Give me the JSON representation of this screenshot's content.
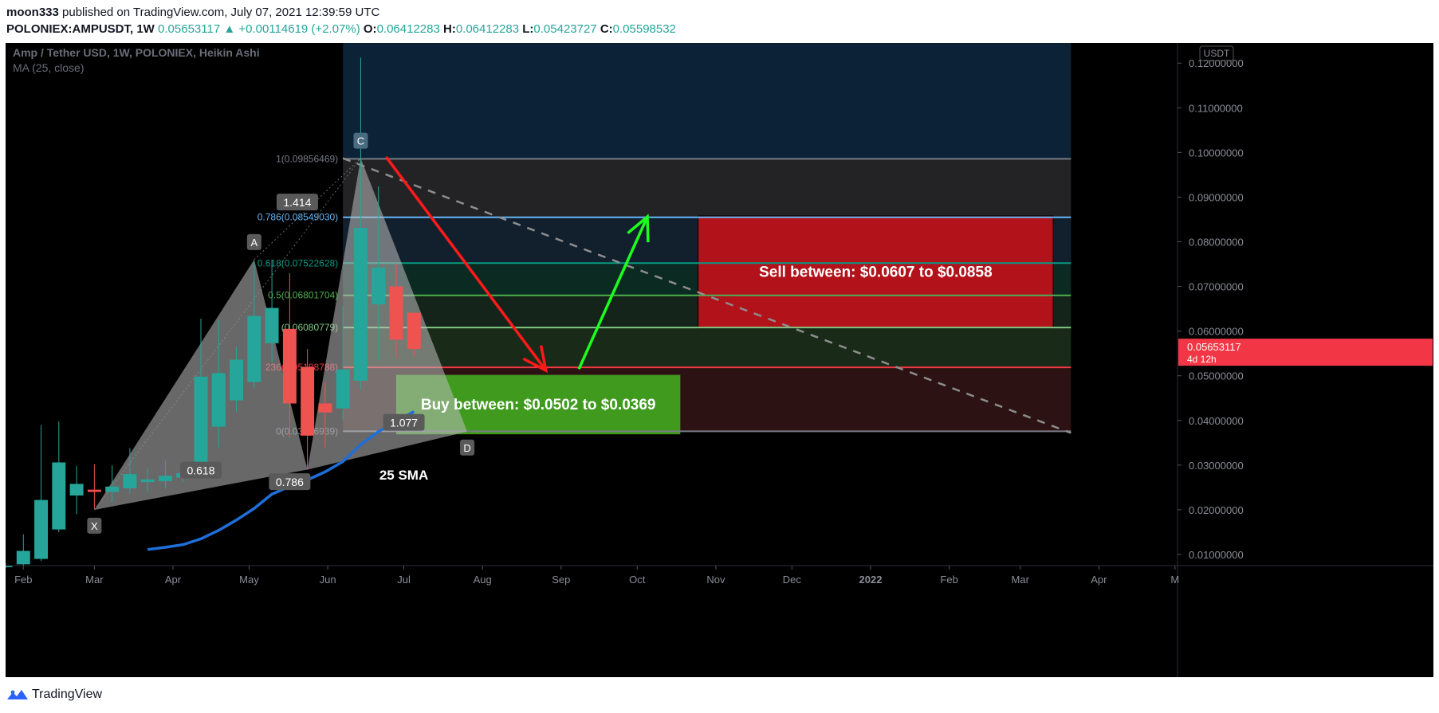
{
  "header": {
    "author": "moon333",
    "published_text": "published on TradingView.com, July 07, 2021 12:39:59 UTC",
    "symbol": "POLONIEX:AMPUSDT, 1W",
    "price": "0.05653117",
    "change_arrow": "▲",
    "change": "+0.00114619 (+2.07%)",
    "o_label": "O:",
    "o_value": "0.06412283",
    "h_label": "H:",
    "h_value": "0.06412283",
    "l_label": "L:",
    "l_value": "0.05423727",
    "c_label": "C:",
    "c_value": "0.05598532"
  },
  "legend": {
    "title": "Amp / Tether USD, 1W, POLONIEX, Heikin Ashi",
    "indicator": "MA (25, close)"
  },
  "footer": {
    "brand": "TradingView",
    "logo_icon": "tradingview-logo-icon"
  },
  "colors": {
    "up": "#26a69a",
    "down": "#ef5350",
    "ma": "#1e6fd9",
    "price_tag": "#f23645",
    "sell_box": "#b2121a",
    "buy_box": "#3f9a1d",
    "arrow_down": "#ff1a1a",
    "arrow_up": "#1dff1d"
  },
  "chart_data": {
    "type": "candlestick",
    "title": "Amp / Tether USD, 1W, POLONIEX, Heikin Ashi",
    "currency": "USDT",
    "y_scale": "linear",
    "ylim": [
      0.0075,
      0.1245
    ],
    "x_range": [
      "2021-01-25",
      "2022-05-02"
    ],
    "x_tick_labels": [
      {
        "label": "Feb",
        "date": "2021-02-01"
      },
      {
        "label": "Mar",
        "date": "2021-03-01"
      },
      {
        "label": "Apr",
        "date": "2021-04-01"
      },
      {
        "label": "May",
        "date": "2021-05-01"
      },
      {
        "label": "Jun",
        "date": "2021-06-01"
      },
      {
        "label": "Jul",
        "date": "2021-07-01"
      },
      {
        "label": "Aug",
        "date": "2021-08-01"
      },
      {
        "label": "Sep",
        "date": "2021-09-01"
      },
      {
        "label": "Oct",
        "date": "2021-10-01"
      },
      {
        "label": "Nov",
        "date": "2021-11-01"
      },
      {
        "label": "Dec",
        "date": "2021-12-01"
      },
      {
        "label": "2022",
        "date": "2022-01-01"
      },
      {
        "label": "Feb",
        "date": "2022-02-01"
      },
      {
        "label": "Mar",
        "date": "2022-03-01"
      },
      {
        "label": "Apr",
        "date": "2022-04-01"
      },
      {
        "label": "M",
        "date": "2022-05-01"
      }
    ],
    "y_tick_labels": [
      "0.12000000",
      "0.11000000",
      "0.10000000",
      "0.09000000",
      "0.08000000",
      "0.07000000",
      "0.06000000",
      "0.05000000",
      "0.04000000",
      "0.03000000",
      "0.02000000",
      "0.01000000"
    ],
    "y_tick_values": [
      0.12,
      0.11,
      0.1,
      0.09,
      0.08,
      0.07,
      0.06,
      0.05,
      0.04,
      0.03,
      0.02,
      0.01
    ],
    "candles": [
      {
        "date": "2021-01-25",
        "o": 0.0072,
        "h": 0.008,
        "l": 0.007,
        "c": 0.0075
      },
      {
        "date": "2021-02-01",
        "o": 0.0078,
        "h": 0.0145,
        "l": 0.0075,
        "c": 0.0108
      },
      {
        "date": "2021-02-08",
        "o": 0.009,
        "h": 0.039,
        "l": 0.0085,
        "c": 0.0222
      },
      {
        "date": "2021-02-15",
        "o": 0.0156,
        "h": 0.0398,
        "l": 0.015,
        "c": 0.0306
      },
      {
        "date": "2021-02-22",
        "o": 0.0232,
        "h": 0.0298,
        "l": 0.019,
        "c": 0.0258
      },
      {
        "date": "2021-03-01",
        "o": 0.0245,
        "h": 0.0302,
        "l": 0.0202,
        "c": 0.024
      },
      {
        "date": "2021-03-08",
        "o": 0.024,
        "h": 0.03,
        "l": 0.0218,
        "c": 0.0252
      },
      {
        "date": "2021-03-15",
        "o": 0.0248,
        "h": 0.0338,
        "l": 0.0236,
        "c": 0.028
      },
      {
        "date": "2021-03-22",
        "o": 0.0262,
        "h": 0.0292,
        "l": 0.024,
        "c": 0.0268
      },
      {
        "date": "2021-03-29",
        "o": 0.0264,
        "h": 0.031,
        "l": 0.0248,
        "c": 0.0276
      },
      {
        "date": "2021-04-05",
        "o": 0.0272,
        "h": 0.03,
        "l": 0.0262,
        "c": 0.0282
      },
      {
        "date": "2021-04-12",
        "o": 0.0278,
        "h": 0.0628,
        "l": 0.0274,
        "c": 0.0498
      },
      {
        "date": "2021-04-19",
        "o": 0.0386,
        "h": 0.0625,
        "l": 0.034,
        "c": 0.0506
      },
      {
        "date": "2021-04-26",
        "o": 0.0445,
        "h": 0.0566,
        "l": 0.042,
        "c": 0.0536
      },
      {
        "date": "2021-05-03",
        "o": 0.0486,
        "h": 0.0756,
        "l": 0.0473,
        "c": 0.0634
      },
      {
        "date": "2021-05-10",
        "o": 0.0573,
        "h": 0.076,
        "l": 0.053,
        "c": 0.0652
      },
      {
        "date": "2021-05-17",
        "o": 0.0605,
        "h": 0.073,
        "l": 0.036,
        "c": 0.0438
      },
      {
        "date": "2021-05-24",
        "o": 0.052,
        "h": 0.056,
        "l": 0.029,
        "c": 0.0366
      },
      {
        "date": "2021-05-31",
        "o": 0.0438,
        "h": 0.0487,
        "l": 0.034,
        "c": 0.0418
      },
      {
        "date": "2021-06-07",
        "o": 0.0427,
        "h": 0.0658,
        "l": 0.04,
        "c": 0.0514
      },
      {
        "date": "2021-06-14",
        "o": 0.0489,
        "h": 0.1212,
        "l": 0.047,
        "c": 0.0831
      },
      {
        "date": "2021-06-21",
        "o": 0.066,
        "h": 0.0924,
        "l": 0.0532,
        "c": 0.0742
      },
      {
        "date": "2021-06-28",
        "o": 0.07,
        "h": 0.0752,
        "l": 0.054,
        "c": 0.0581
      },
      {
        "date": "2021-07-05",
        "o": 0.0641,
        "h": 0.0641,
        "l": 0.0542,
        "c": 0.056
      }
    ],
    "ma": {
      "name": "MA (25, close)",
      "points": [
        {
          "date": "2021-03-22",
          "v": 0.0111
        },
        {
          "date": "2021-03-29",
          "v": 0.0116
        },
        {
          "date": "2021-04-05",
          "v": 0.0122
        },
        {
          "date": "2021-04-12",
          "v": 0.0135
        },
        {
          "date": "2021-04-19",
          "v": 0.0154
        },
        {
          "date": "2021-04-26",
          "v": 0.0177
        },
        {
          "date": "2021-05-03",
          "v": 0.0203
        },
        {
          "date": "2021-05-10",
          "v": 0.0235
        },
        {
          "date": "2021-05-17",
          "v": 0.0252
        },
        {
          "date": "2021-05-24",
          "v": 0.0267
        },
        {
          "date": "2021-05-31",
          "v": 0.0285
        },
        {
          "date": "2021-06-07",
          "v": 0.0308
        },
        {
          "date": "2021-06-14",
          "v": 0.0346
        },
        {
          "date": "2021-06-21",
          "v": 0.0375
        },
        {
          "date": "2021-06-28",
          "v": 0.0398
        },
        {
          "date": "2021-07-05",
          "v": 0.042
        }
      ]
    },
    "fib_box": {
      "start": "2021-06-07",
      "end": "2022-03-21",
      "top": 0.1245
    },
    "fib_levels": [
      {
        "ratio": "1",
        "value": 0.09856469,
        "label": "1(0.09856469)",
        "color": "#787b86",
        "fill": "#232326"
      },
      {
        "ratio": "0.786",
        "value": 0.0854903,
        "label": "0.786(0.08549030)",
        "color": "#64b5f6",
        "fill": "#12202e"
      },
      {
        "ratio": "0.618",
        "value": 0.07522628,
        "label": "0.618(0.07522628)",
        "color": "#089981",
        "fill": "#0b2a22"
      },
      {
        "ratio": "0.5",
        "value": 0.06801704,
        "label": "0.5(0.06801704)",
        "color": "#4caf50",
        "fill": "#15241a"
      },
      {
        "ratio": "0.382",
        "value": 0.06080779,
        "label": "(0.06080779)",
        "color": "#81c784",
        "fill": "#1a2a18"
      },
      {
        "ratio": "0.236",
        "value": 0.05188788,
        "label": "236(0.05188788)",
        "color": "#f23645",
        "fill": "#2c1212"
      },
      {
        "ratio": "0",
        "value": 0.03756939,
        "label": "0(0.03756939)",
        "color": "#787b86",
        "fill": null
      }
    ],
    "harmonic": {
      "points": {
        "X": {
          "date": "2021-03-01",
          "v": 0.02
        },
        "A": {
          "date": "2021-05-03",
          "v": 0.076
        },
        "B": {
          "date": "2021-05-24",
          "v": 0.029
        },
        "C": {
          "date": "2021-06-14",
          "v": 0.0987
        },
        "D": {
          "date": "2021-07-26",
          "v": 0.0375
        }
      },
      "ratios": [
        {
          "text": "1.414",
          "date": "2021-05-20",
          "v": 0.0888
        },
        {
          "text": "0.618",
          "date": "2021-04-12",
          "v": 0.0288
        },
        {
          "text": "0.786",
          "date": "2021-05-17",
          "v": 0.0262
        },
        {
          "text": "1.077",
          "date": "2021-07-01",
          "v": 0.0395
        }
      ]
    },
    "trendlines": [
      {
        "name": "dotted-support-line",
        "from": {
          "date": "2021-03-01",
          "v": 0.02
        },
        "to": {
          "date": "2021-07-26",
          "v": 0.0375
        }
      },
      {
        "name": "dashed-downtrend-line",
        "from": {
          "date": "2021-06-07",
          "v": 0.0987
        },
        "to": {
          "date": "2022-03-21",
          "v": 0.0372
        }
      }
    ],
    "sell_zone": {
      "label": "Sell between: $0.0607 to $0.0858",
      "start": "2021-10-25",
      "end": "2022-03-14",
      "top": 0.0858,
      "bottom": 0.0607
    },
    "buy_zone": {
      "label": "Buy between: $0.0502 to $0.0369",
      "start": "2021-06-28",
      "end": "2021-10-18",
      "top": 0.0502,
      "bottom": 0.0369
    },
    "arrows": [
      {
        "name": "down-arrow",
        "from": {
          "date": "2021-06-24",
          "v": 0.099
        },
        "to": {
          "date": "2021-08-26",
          "v": 0.0512
        }
      },
      {
        "name": "up-arrow",
        "from": {
          "date": "2021-09-08",
          "v": 0.0515
        },
        "to": {
          "date": "2021-10-05",
          "v": 0.0856
        }
      }
    ],
    "annotations": [
      {
        "text": "25 SMA",
        "date": "2021-07-01",
        "v": 0.0278
      }
    ],
    "current_price": {
      "value": "0.05653117",
      "v": 0.05653117,
      "countdown": "4d 12h"
    },
    "axis_currency_badge": "USDT"
  }
}
